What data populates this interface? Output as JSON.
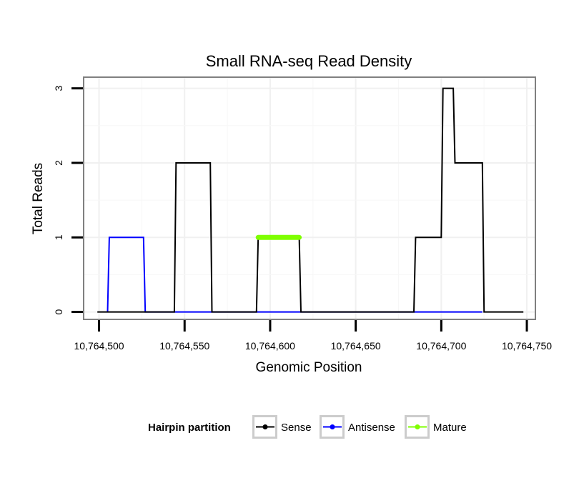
{
  "chart_data": {
    "type": "line",
    "title": "Small RNA-seq Read Density",
    "xlabel": "Genomic Position",
    "ylabel": "Total Reads",
    "xlim": [
      10764491,
      10764755
    ],
    "ylim": [
      -0.1,
      3.15
    ],
    "x_ticks": [
      {
        "value": 10764500,
        "label": "10,764,500"
      },
      {
        "value": 10764550,
        "label": "10,764,550"
      },
      {
        "value": 10764600,
        "label": "10,764,600"
      },
      {
        "value": 10764650,
        "label": "10,764,650"
      },
      {
        "value": 10764700,
        "label": "10,764,700"
      },
      {
        "value": 10764750,
        "label": "10,764,750"
      }
    ],
    "y_ticks": [
      {
        "value": 0,
        "label": "0"
      },
      {
        "value": 1,
        "label": "1"
      },
      {
        "value": 2,
        "label": "2"
      },
      {
        "value": 3,
        "label": "3"
      }
    ],
    "grid": true,
    "legend": {
      "title": "Hairpin partition",
      "position": "bottom",
      "entries": [
        "Sense",
        "Antisense",
        "Mature"
      ]
    },
    "series": [
      {
        "name": "Sense",
        "color": "#000000",
        "points": [
          [
            10764499,
            0
          ],
          [
            10764544,
            0
          ],
          [
            10764545,
            2
          ],
          [
            10764565,
            2
          ],
          [
            10764566,
            0
          ],
          [
            10764592,
            0
          ],
          [
            10764593,
            1
          ],
          [
            10764617,
            1
          ],
          [
            10764618,
            0
          ],
          [
            10764684,
            0
          ],
          [
            10764685,
            1
          ],
          [
            10764700,
            1
          ],
          [
            10764701,
            3
          ],
          [
            10764707,
            3
          ],
          [
            10764708,
            2
          ],
          [
            10764724,
            2
          ],
          [
            10764725,
            0
          ],
          [
            10764748,
            0
          ]
        ]
      },
      {
        "name": "Antisense",
        "color": "#0000ff",
        "points": [
          [
            10764505,
            0
          ],
          [
            10764506,
            1
          ],
          [
            10764526,
            1
          ],
          [
            10764527,
            0
          ],
          [
            10764545,
            0
          ],
          [
            10764565,
            0
          ],
          [
            10764593,
            0
          ],
          [
            10764617,
            0
          ],
          [
            10764685,
            0
          ],
          [
            10764724,
            0
          ]
        ]
      },
      {
        "name": "Mature",
        "color": "#7fff00",
        "points": [
          [
            10764593,
            1
          ],
          [
            10764617,
            1
          ]
        ]
      }
    ]
  }
}
